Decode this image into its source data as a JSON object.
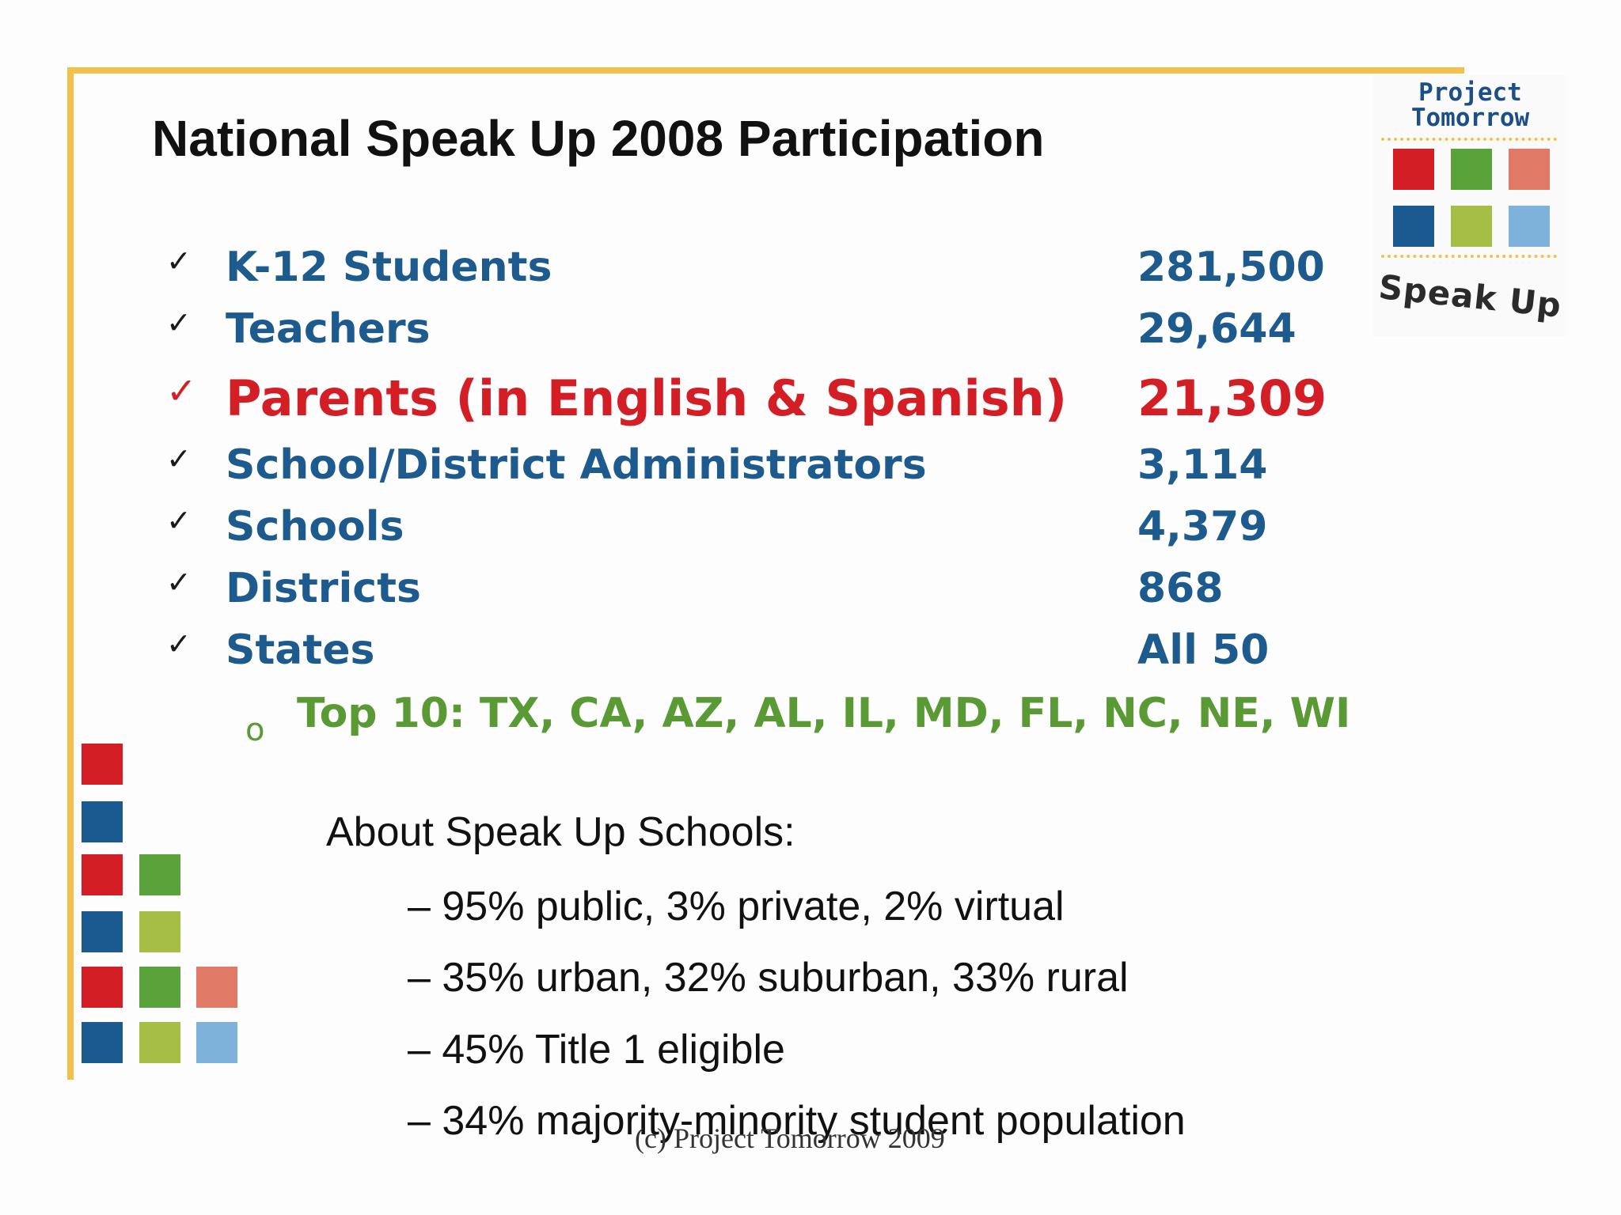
{
  "slide": {
    "title": "National Speak Up 2008 Participation",
    "logo": {
      "line1": "Project",
      "line2": "Tomorrow",
      "speak_up": "Speak Up"
    },
    "participation": [
      {
        "check": "✓",
        "label": "K-12 Students",
        "value": "281,500",
        "highlight": false
      },
      {
        "check": "✓",
        "label": "Teachers",
        "value": "29,644",
        "highlight": false
      },
      {
        "check": "✓",
        "label": "Parents (in English & Spanish)",
        "value": "21,309",
        "highlight": true
      },
      {
        "check": "✓",
        "label": "School/District Administrators",
        "value": "3,114",
        "highlight": false
      },
      {
        "check": "✓",
        "label": "Schools",
        "value": "4,379",
        "highlight": false
      },
      {
        "check": "✓",
        "label": "Districts",
        "value": "868",
        "highlight": false
      },
      {
        "check": "✓",
        "label": "States",
        "value": "All 50",
        "highlight": false
      }
    ],
    "sub_bullet": "o",
    "top10": "Top 10: TX, CA, AZ, AL, IL, MD, FL, NC, NE, WI",
    "about": {
      "heading": "About Speak Up Schools:",
      "items": [
        "– 95% public, 3% private, 2% virtual",
        "– 35% urban, 32% suburban, 33% rural",
        "– 45% Title 1 eligible",
        "– 34% majority-minority student population"
      ]
    },
    "footer": "(c) Project Tomorrow 2009",
    "colors": {
      "accent_yellow": "#f2c14a",
      "text_blue": "#1d5a8e",
      "highlight_red": "#d41e25",
      "top10_green": "#5a9a35"
    }
  }
}
